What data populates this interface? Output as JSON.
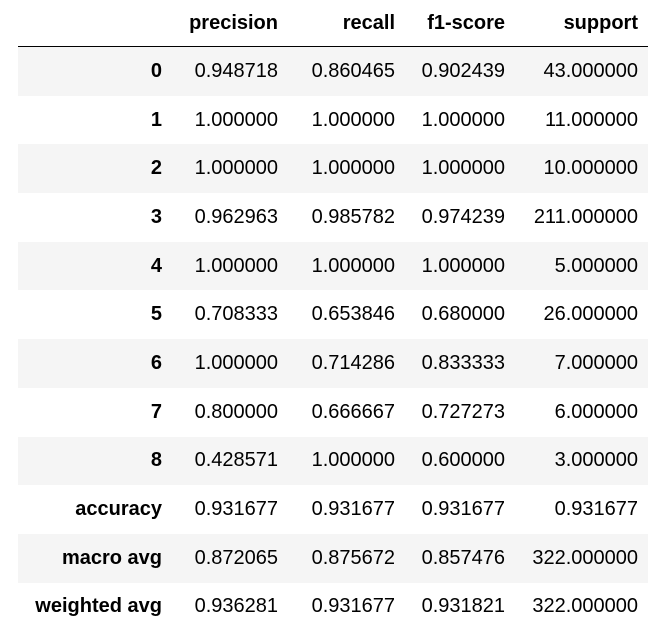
{
  "table": {
    "columns": [
      "",
      "precision",
      "recall",
      "f1-score",
      "support"
    ],
    "rows": [
      {
        "label": "0",
        "precision": "0.948718",
        "recall": "0.860465",
        "f1": "0.902439",
        "support": "43.000000"
      },
      {
        "label": "1",
        "precision": "1.000000",
        "recall": "1.000000",
        "f1": "1.000000",
        "support": "11.000000"
      },
      {
        "label": "2",
        "precision": "1.000000",
        "recall": "1.000000",
        "f1": "1.000000",
        "support": "10.000000"
      },
      {
        "label": "3",
        "precision": "0.962963",
        "recall": "0.985782",
        "f1": "0.974239",
        "support": "211.000000"
      },
      {
        "label": "4",
        "precision": "1.000000",
        "recall": "1.000000",
        "f1": "1.000000",
        "support": "5.000000"
      },
      {
        "label": "5",
        "precision": "0.708333",
        "recall": "0.653846",
        "f1": "0.680000",
        "support": "26.000000"
      },
      {
        "label": "6",
        "precision": "1.000000",
        "recall": "0.714286",
        "f1": "0.833333",
        "support": "7.000000"
      },
      {
        "label": "7",
        "precision": "0.800000",
        "recall": "0.666667",
        "f1": "0.727273",
        "support": "6.000000"
      },
      {
        "label": "8",
        "precision": "0.428571",
        "recall": "1.000000",
        "f1": "0.600000",
        "support": "3.000000"
      },
      {
        "label": "accuracy",
        "precision": "0.931677",
        "recall": "0.931677",
        "f1": "0.931677",
        "support": "0.931677"
      },
      {
        "label": "macro avg",
        "precision": "0.872065",
        "recall": "0.875672",
        "f1": "0.857476",
        "support": "322.000000"
      },
      {
        "label": "weighted avg",
        "precision": "0.936281",
        "recall": "0.931677",
        "f1": "0.931821",
        "support": "322.000000"
      }
    ]
  },
  "colors": {
    "row_stripe": "#f5f5f5",
    "background": "#ffffff",
    "text": "#000000"
  }
}
